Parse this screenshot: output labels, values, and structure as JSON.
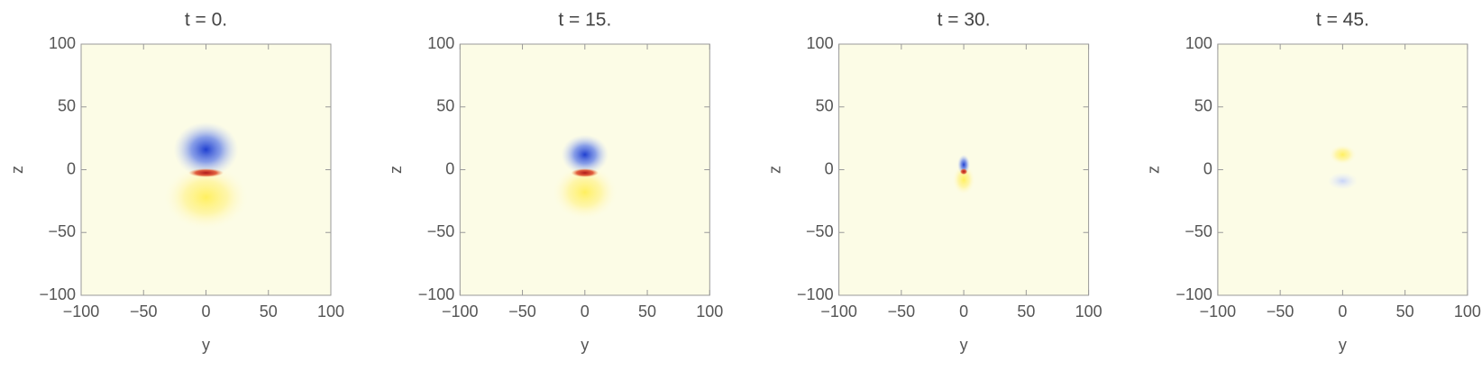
{
  "chart_data": [
    {
      "type": "density",
      "title": "t = 0.",
      "x_label": "y",
      "y_label": "z",
      "xlim": [
        -100,
        100
      ],
      "ylim": [
        -100,
        100
      ],
      "xticks": [
        {
          "value": -100,
          "label": "−100"
        },
        {
          "value": -50,
          "label": "−50"
        },
        0,
        50,
        100
      ],
      "yticks": [
        {
          "value": -100,
          "label": "−100"
        },
        {
          "value": -50,
          "label": "−50"
        },
        0,
        50,
        100
      ]
    },
    {
      "type": "density",
      "title": "t = 15.",
      "x_label": "y",
      "y_label": "z",
      "xlim": [
        -100,
        100
      ],
      "ylim": [
        -100,
        100
      ],
      "xticks": [
        {
          "value": -100,
          "label": "−100"
        },
        {
          "value": -50,
          "label": "−50"
        },
        0,
        50,
        100
      ],
      "yticks": [
        {
          "value": -100,
          "label": "−100"
        },
        {
          "value": -50,
          "label": "−50"
        },
        0,
        50,
        100
      ]
    },
    {
      "type": "density",
      "title": "t = 30.",
      "x_label": "y",
      "y_label": "z",
      "xlim": [
        -100,
        100
      ],
      "ylim": [
        -100,
        100
      ],
      "xticks": [
        {
          "value": -100,
          "label": "−100"
        },
        {
          "value": -50,
          "label": "−50"
        },
        0,
        50,
        100
      ],
      "yticks": [
        {
          "value": -100,
          "label": "−100"
        },
        {
          "value": -50,
          "label": "−50"
        },
        0,
        50,
        100
      ]
    },
    {
      "type": "density",
      "title": "t = 45.",
      "x_label": "y",
      "y_label": "z",
      "xlim": [
        -100,
        100
      ],
      "ylim": [
        -100,
        100
      ],
      "xticks": [
        {
          "value": -100,
          "label": "−100"
        },
        {
          "value": -50,
          "label": "−50"
        },
        0,
        50,
        100
      ],
      "yticks": [
        {
          "value": -100,
          "label": "−100"
        },
        {
          "value": -50,
          "label": "−50"
        },
        0,
        50,
        100
      ]
    }
  ]
}
